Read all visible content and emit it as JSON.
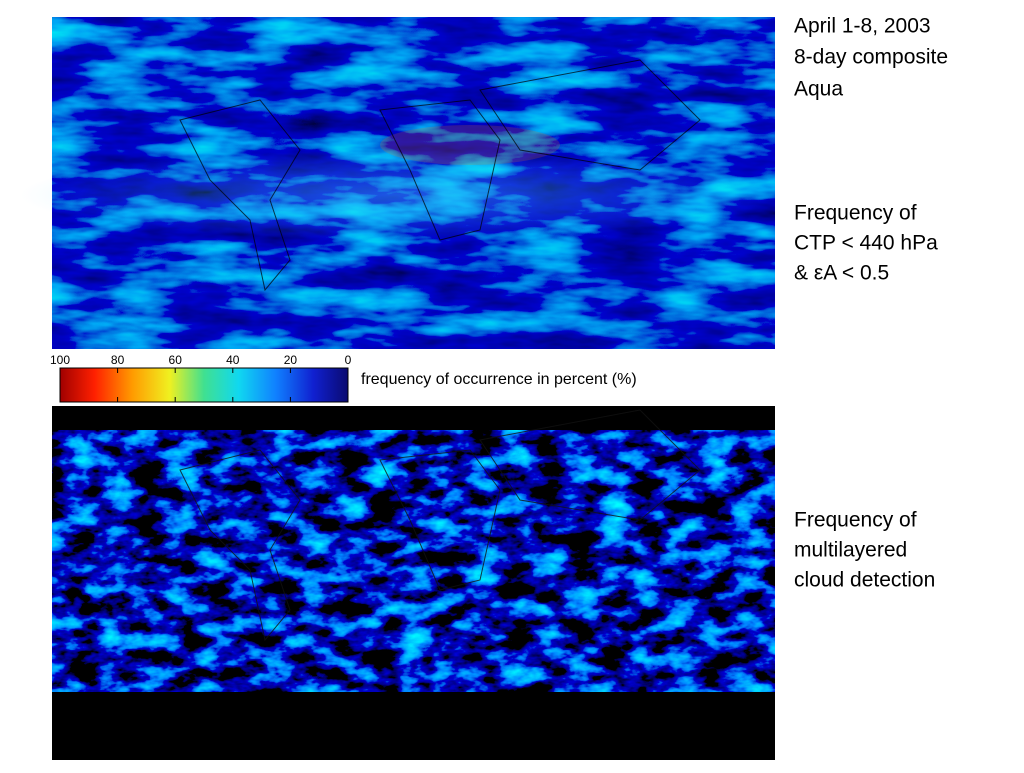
{
  "header": {
    "lines": [
      "April 1-8, 2003",
      "8-day composite",
      "Aqua"
    ]
  },
  "top_map": {
    "caption": [
      "Frequency of",
      "CTP < 440 hPa",
      "& εA < 0.5"
    ]
  },
  "bottom_map": {
    "caption": [
      "Frequency of",
      "multilayered",
      "cloud detection"
    ]
  },
  "colorbar": {
    "range": [
      100,
      0
    ],
    "ticks": [
      100,
      80,
      60,
      40,
      20,
      0
    ],
    "label": "frequency of occurrence in percent (%)"
  }
}
